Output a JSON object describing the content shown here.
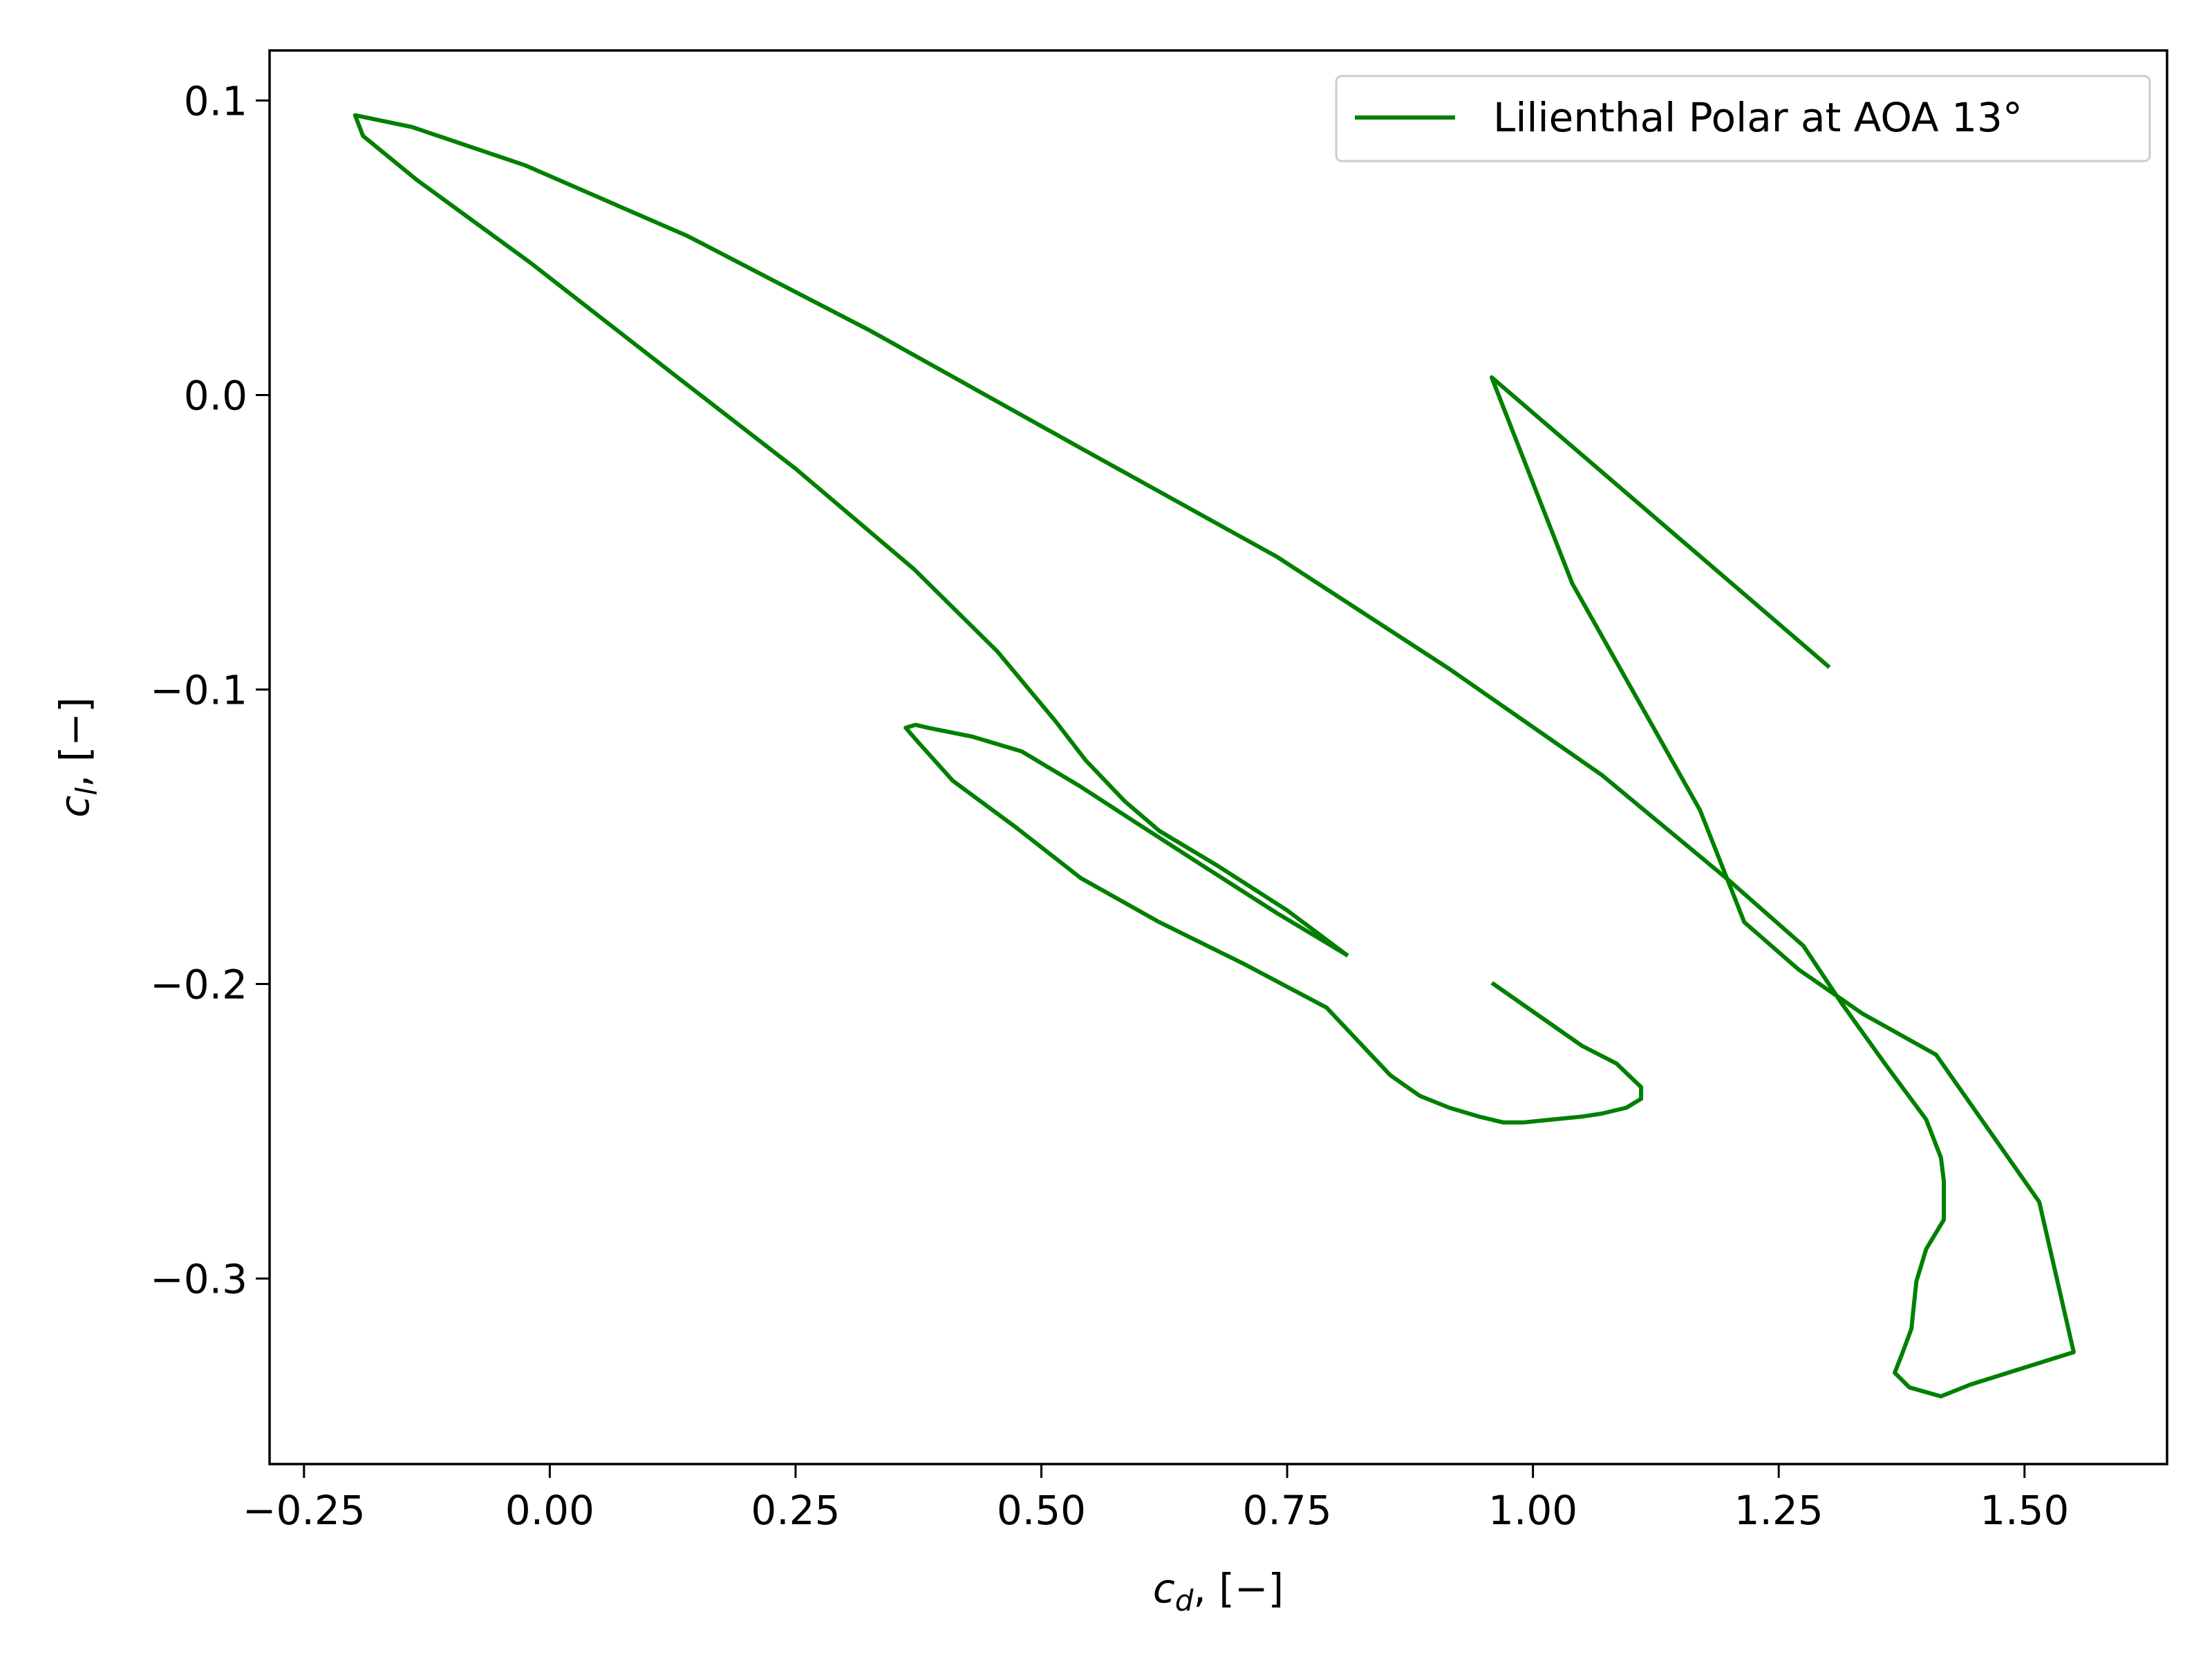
{
  "chart_data": {
    "type": "line",
    "title": "",
    "xlabel": "c_d, [−]",
    "ylabel": "c_l, [−]",
    "xlim": [
      -0.285,
      1.645
    ],
    "ylim": [
      -0.363,
      0.117
    ],
    "xticks": [
      -0.25,
      0.0,
      0.25,
      0.5,
      0.75,
      1.0,
      1.25,
      1.5
    ],
    "xtick_labels": [
      "−0.25",
      "0.00",
      "0.25",
      "0.50",
      "0.75",
      "1.00",
      "1.25",
      "1.50"
    ],
    "yticks": [
      -0.3,
      -0.2,
      -0.1,
      0.0,
      0.1
    ],
    "ytick_labels": [
      "−0.3",
      "−0.2",
      "−0.1",
      "0.0",
      "0.1"
    ],
    "grid": false,
    "legend": {
      "placement": "top-right",
      "entries": [
        "Lilienthal Polar at AOA 13°"
      ]
    },
    "series": [
      {
        "name": "Lilienthal Polar at AOA 13°",
        "color": "#008000",
        "x": [
          0.81,
          0.75,
          0.68,
          0.62,
          0.585,
          0.545,
          0.515,
          0.455,
          0.37,
          0.25,
          0.13,
          -0.02,
          -0.135,
          -0.19,
          -0.198,
          -0.14,
          -0.025,
          0.14,
          0.325,
          0.54,
          0.74,
          0.915,
          1.07,
          1.2,
          1.275,
          1.315,
          1.36,
          1.4,
          1.415,
          1.418,
          1.418,
          1.4,
          1.39,
          1.385,
          1.375,
          1.368,
          1.383,
          1.415,
          1.445,
          1.55,
          1.515,
          1.41,
          1.335,
          1.27,
          1.215,
          1.17,
          1.04,
          0.958,
          1.3
        ],
        "y": [
          -0.19,
          -0.175,
          -0.16,
          -0.148,
          -0.138,
          -0.124,
          -0.111,
          -0.087,
          -0.059,
          -0.025,
          0.006,
          0.045,
          0.073,
          0.088,
          0.095,
          0.091,
          0.078,
          0.054,
          0.022,
          -0.018,
          -0.055,
          -0.093,
          -0.129,
          -0.165,
          -0.187,
          -0.207,
          -0.228,
          -0.246,
          -0.259,
          -0.267,
          -0.28,
          -0.29,
          -0.301,
          -0.317,
          -0.326,
          -0.332,
          -0.337,
          -0.34,
          -0.336,
          -0.325,
          -0.274,
          -0.224,
          -0.21,
          -0.195,
          -0.179,
          -0.141,
          -0.064,
          0.006,
          -0.092
        ]
      },
      {
        "name": "",
        "color": "#008000",
        "x": [
          0.81,
          0.74,
          0.665,
          0.6,
          0.54,
          0.48,
          0.43,
          0.385,
          0.372,
          0.362,
          0.375,
          0.41,
          0.475,
          0.54,
          0.62,
          0.705,
          0.79,
          0.855,
          0.885,
          0.915,
          0.945,
          0.97,
          0.99,
          1.02,
          1.05,
          1.07,
          1.095,
          1.11,
          1.11,
          1.085,
          1.05,
          0.96
        ],
        "y": [
          -0.19,
          -0.176,
          -0.16,
          -0.146,
          -0.133,
          -0.121,
          -0.116,
          -0.113,
          -0.112,
          -0.113,
          -0.118,
          -0.131,
          -0.147,
          -0.164,
          -0.179,
          -0.193,
          -0.208,
          -0.231,
          -0.238,
          -0.242,
          -0.245,
          -0.247,
          -0.247,
          -0.246,
          -0.245,
          -0.244,
          -0.242,
          -0.239,
          -0.235,
          -0.227,
          -0.221,
          -0.2
        ]
      }
    ]
  }
}
